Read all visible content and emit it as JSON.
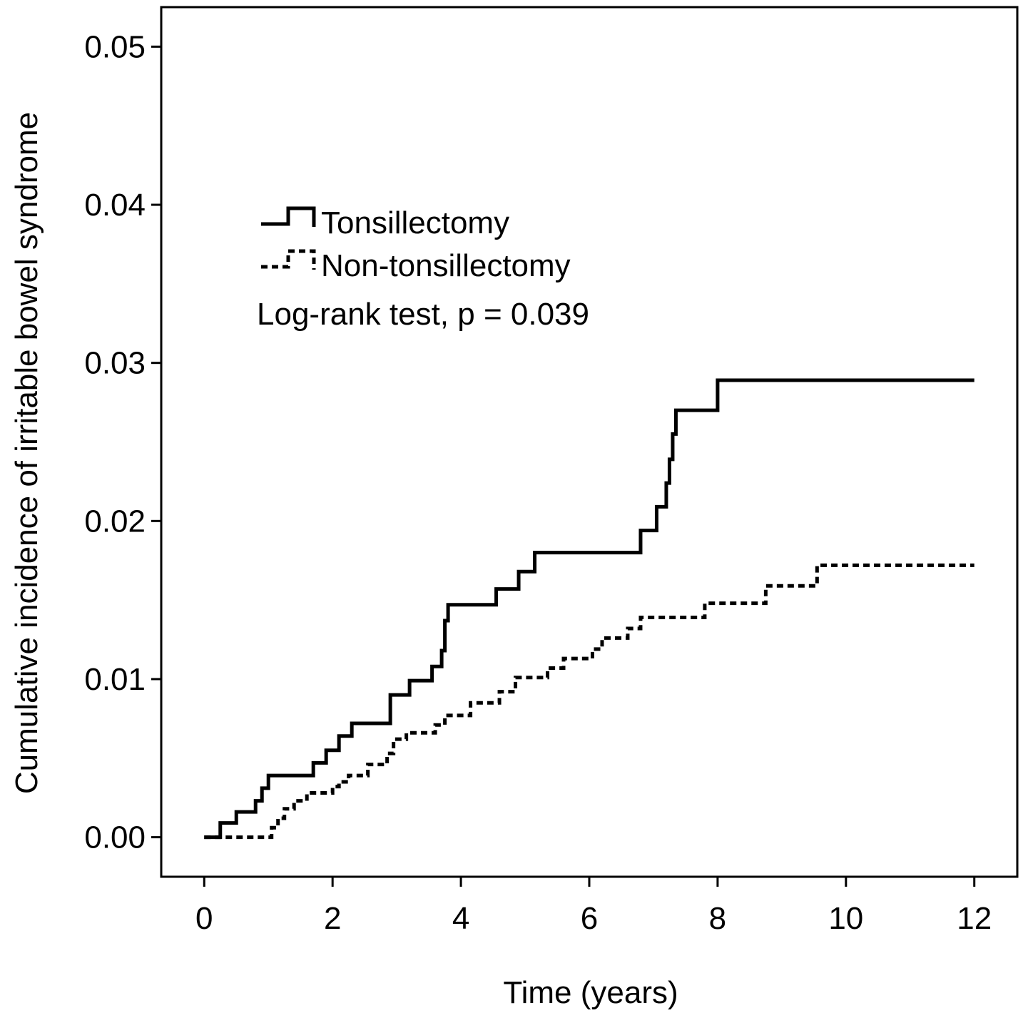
{
  "chart_data": {
    "type": "line",
    "step": true,
    "xlabel": "Time (years)",
    "ylabel": "Cumulative incidence of irritable bowel syndrome",
    "xlim": [
      -0.67,
      12.67
    ],
    "ylim": [
      -0.0025,
      0.0525
    ],
    "x_ticks": [
      0,
      2,
      4,
      6,
      8,
      10,
      12
    ],
    "x_tick_labels": [
      "0",
      "2",
      "4",
      "6",
      "8",
      "10",
      "12"
    ],
    "y_ticks": [
      0,
      0.01,
      0.02,
      0.03,
      0.04,
      0.05
    ],
    "y_tick_labels": [
      "0.00",
      "0.01",
      "0.02",
      "0.03",
      "0.04",
      "0.05"
    ],
    "grid": false,
    "legend_position": "top-left",
    "annotation": "Log-rank test, p = 0.039",
    "series": [
      {
        "name": "Tonsillectomy",
        "line_style": "solid",
        "color": "#000000",
        "x": [
          0,
          0.25,
          0.5,
          0.8,
          0.9,
          1.0,
          1.7,
          1.9,
          2.1,
          2.3,
          2.9,
          3.2,
          3.55,
          3.7,
          3.75,
          3.8,
          4.55,
          4.9,
          5.15,
          6.8,
          7.05,
          7.2,
          7.25,
          7.3,
          7.35,
          8.0,
          12.0
        ],
        "y": [
          0,
          0.0009,
          0.0016,
          0.0023,
          0.0031,
          0.0039,
          0.0047,
          0.0055,
          0.0064,
          0.0072,
          0.009,
          0.0099,
          0.0108,
          0.0118,
          0.0137,
          0.0147,
          0.0157,
          0.0168,
          0.018,
          0.0194,
          0.0209,
          0.0224,
          0.0239,
          0.0255,
          0.027,
          0.0289,
          0.0289
        ]
      },
      {
        "name": "Non-tonsillectomy",
        "line_style": "dashed",
        "color": "#000000",
        "x": [
          0,
          0.25,
          1.05,
          1.15,
          1.25,
          1.4,
          1.6,
          2.0,
          2.1,
          2.25,
          2.55,
          2.85,
          2.95,
          3.15,
          3.6,
          3.75,
          4.15,
          4.6,
          4.85,
          5.35,
          5.6,
          6.05,
          6.2,
          6.6,
          6.8,
          7.8,
          8.75,
          9.55,
          12.0
        ],
        "y": [
          0,
          0,
          0.0006,
          0.0012,
          0.0018,
          0.0023,
          0.0028,
          0.0032,
          0.0035,
          0.0039,
          0.0046,
          0.0053,
          0.0062,
          0.0066,
          0.0071,
          0.0077,
          0.0085,
          0.0092,
          0.0101,
          0.0107,
          0.0113,
          0.0119,
          0.0126,
          0.0132,
          0.0139,
          0.0148,
          0.0159,
          0.0172,
          0.0172
        ]
      }
    ]
  }
}
